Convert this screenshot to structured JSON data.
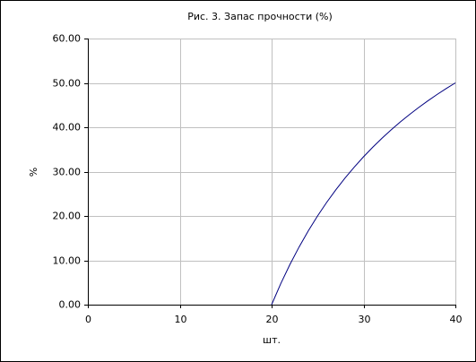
{
  "chart_data": {
    "type": "line",
    "title": "Рис. 3. Запас прочности (%)",
    "x_label": "шт.",
    "y_label": "%",
    "x": [
      20,
      21,
      22,
      23,
      24,
      25,
      26,
      27,
      28,
      29,
      30,
      31,
      32,
      33,
      34,
      35,
      36,
      37,
      38,
      39,
      40
    ],
    "series": [
      {
        "name": "Запас прочности",
        "color": "#000080",
        "values": [
          0,
          4.76,
          9.09,
          13.04,
          16.67,
          20,
          23.08,
          25.93,
          28.57,
          31.03,
          33.33,
          35.48,
          37.5,
          39.39,
          41.18,
          42.86,
          44.44,
          45.95,
          47.37,
          48.72,
          50
        ]
      }
    ],
    "xlim": [
      0,
      40
    ],
    "xticks": [
      0,
      10,
      20,
      30,
      40
    ],
    "ylim": [
      0,
      60
    ],
    "yticks": [
      {
        "value": 0,
        "label": "0.00"
      },
      {
        "value": 10,
        "label": "10.00"
      },
      {
        "value": 20,
        "label": "20.00"
      },
      {
        "value": 30,
        "label": "30.00"
      },
      {
        "value": 40,
        "label": "40.00"
      },
      {
        "value": 50,
        "label": "50.00"
      },
      {
        "value": 60,
        "label": "60.00"
      }
    ],
    "grid": true
  }
}
